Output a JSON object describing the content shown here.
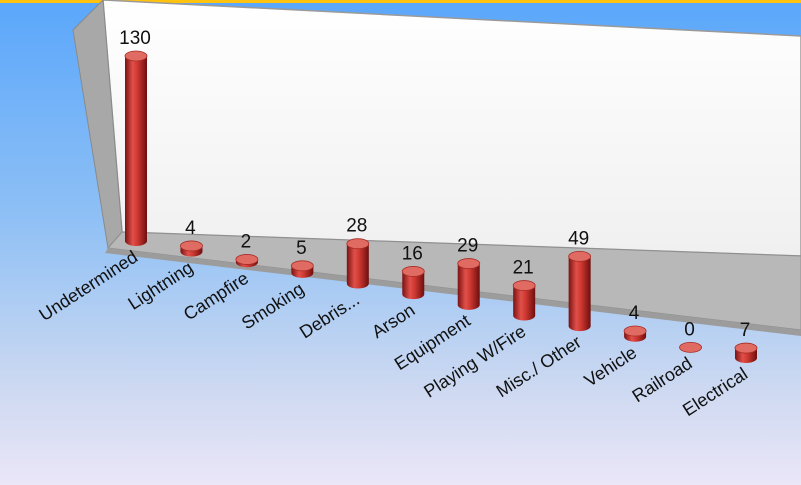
{
  "chart_data": {
    "type": "bar",
    "style": "3d-cylinder",
    "categories": [
      "Undetermined",
      "Lightning",
      "Campfire",
      "Smoking",
      "Debris...",
      "Arson",
      "Equipment",
      "Playing W/Fire",
      "Misc./ Other",
      "Vehicle",
      "Railroad",
      "Electrical"
    ],
    "values": [
      130,
      4,
      2,
      5,
      28,
      16,
      29,
      21,
      49,
      4,
      0,
      7
    ],
    "title": "",
    "xlabel": "",
    "ylabel": "",
    "ylim": [
      0,
      130
    ],
    "grid": false,
    "legend": "none",
    "colors": {
      "bar": "#c0392b",
      "bar_top": "#e06b63",
      "back_wall": "#ffffff",
      "floor": "#b8b8b8",
      "background_top": "#5ba7fb",
      "background_bottom": "#ebe6f8",
      "top_stripe": "#ffc20e"
    }
  }
}
